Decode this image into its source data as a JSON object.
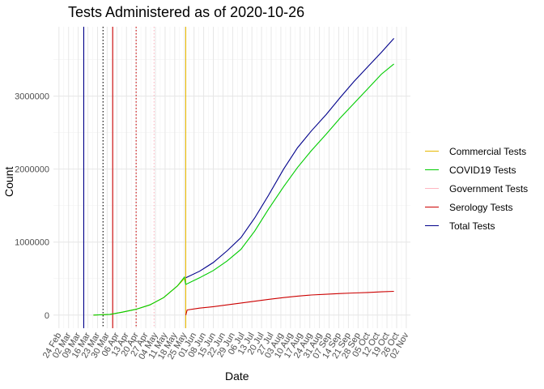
{
  "chart_data": {
    "type": "line",
    "title": "Tests Administered as of 2020-10-26",
    "xlabel": "Date",
    "ylabel": "Count",
    "x_range": [
      "2020-02-20",
      "2020-11-05"
    ],
    "ylim": [
      -180000,
      3950000
    ],
    "yticks": [
      0,
      1000000,
      2000000,
      3000000
    ],
    "ytick_labels": [
      "0",
      "1000000",
      "2000000",
      "3000000"
    ],
    "xticks": [
      "2020-02-24",
      "2020-03-02",
      "2020-03-09",
      "2020-03-16",
      "2020-03-23",
      "2020-03-30",
      "2020-04-06",
      "2020-04-13",
      "2020-04-20",
      "2020-04-27",
      "2020-05-04",
      "2020-05-11",
      "2020-05-18",
      "2020-05-25",
      "2020-06-01",
      "2020-06-08",
      "2020-06-15",
      "2020-06-22",
      "2020-06-29",
      "2020-07-06",
      "2020-07-13",
      "2020-07-20",
      "2020-07-27",
      "2020-08-03",
      "2020-08-10",
      "2020-08-17",
      "2020-08-24",
      "2020-08-31",
      "2020-09-07",
      "2020-09-14",
      "2020-09-21",
      "2020-09-28",
      "2020-10-05",
      "2020-10-12",
      "2020-10-19",
      "2020-10-26",
      "2020-11-02"
    ],
    "xtick_labels": [
      "24 Feb",
      "02 Mar",
      "09 Mar",
      "16 Mar",
      "23 Mar",
      "30 Mar",
      "06 Apr",
      "13 Apr",
      "20 Apr",
      "27 Apr",
      "04 May",
      "11 May",
      "18 May",
      "25 May",
      "01 Jun",
      "08 Jun",
      "15 Jun",
      "22 Jun",
      "29 Jun",
      "06 Jul",
      "13 Jul",
      "20 Jul",
      "27 Jul",
      "03 Aug",
      "10 Aug",
      "17 Aug",
      "24 Aug",
      "31 Aug",
      "07 Sep",
      "14 Sep",
      "21 Sep",
      "28 Sep",
      "05 Oct",
      "12 Oct",
      "19 Oct",
      "26 Oct",
      "02 Nov"
    ],
    "grid": true,
    "legend_position": "right",
    "series": [
      {
        "name": "Commercial Tests",
        "color": "#E6B800",
        "x": [
          "2020-03-20",
          "2020-04-01",
          "2020-04-10",
          "2020-04-20",
          "2020-04-30",
          "2020-05-10",
          "2020-05-20",
          "2020-05-25"
        ],
        "values": [
          0,
          10000,
          40000,
          80000,
          140000,
          240000,
          400000,
          500000
        ]
      },
      {
        "name": "COVID19 Tests",
        "color": "#00CC00",
        "x": [
          "2020-03-20",
          "2020-04-01",
          "2020-04-10",
          "2020-04-20",
          "2020-04-30",
          "2020-05-10",
          "2020-05-20",
          "2020-05-25",
          "2020-05-26",
          "2020-06-05",
          "2020-06-15",
          "2020-06-25",
          "2020-07-05",
          "2020-07-15",
          "2020-07-25",
          "2020-08-05",
          "2020-08-15",
          "2020-08-25",
          "2020-09-05",
          "2020-09-15",
          "2020-09-25",
          "2020-10-05",
          "2020-10-15",
          "2020-10-24"
        ],
        "values": [
          0,
          10000,
          40000,
          80000,
          140000,
          240000,
          400000,
          520000,
          420000,
          510000,
          610000,
          740000,
          900000,
          1150000,
          1450000,
          1760000,
          2020000,
          2250000,
          2480000,
          2700000,
          2900000,
          3100000,
          3300000,
          3440000
        ]
      },
      {
        "name": "Government Tests",
        "color": "#FFB6C1",
        "x": [],
        "values": []
      },
      {
        "name": "Serology Tests",
        "color": "#CC0000",
        "x": [
          "2020-05-26",
          "2020-05-27",
          "2020-06-05",
          "2020-06-15",
          "2020-06-25",
          "2020-07-05",
          "2020-07-15",
          "2020-07-25",
          "2020-08-05",
          "2020-08-15",
          "2020-08-25",
          "2020-09-05",
          "2020-09-15",
          "2020-09-25",
          "2020-10-05",
          "2020-10-15",
          "2020-10-24"
        ],
        "values": [
          0,
          70000,
          95000,
          115000,
          140000,
          165000,
          190000,
          215000,
          240000,
          260000,
          275000,
          285000,
          295000,
          303000,
          310000,
          318000,
          325000
        ]
      },
      {
        "name": "Total Tests",
        "color": "#00008B",
        "x": [
          "2020-05-26",
          "2020-06-05",
          "2020-06-15",
          "2020-06-25",
          "2020-07-05",
          "2020-07-15",
          "2020-07-25",
          "2020-08-05",
          "2020-08-15",
          "2020-08-25",
          "2020-09-05",
          "2020-09-15",
          "2020-09-25",
          "2020-10-05",
          "2020-10-15",
          "2020-10-24"
        ],
        "values": [
          510000,
          600000,
          720000,
          880000,
          1060000,
          1330000,
          1640000,
          2000000,
          2290000,
          2520000,
          2750000,
          2980000,
          3200000,
          3400000,
          3600000,
          3790000
        ]
      }
    ],
    "vlines": [
      {
        "x": "2020-03-13",
        "color": "#00008B",
        "style": "solid"
      },
      {
        "x": "2020-03-27",
        "color": "#000000",
        "style": "dotted"
      },
      {
        "x": "2020-04-03",
        "color": "#CC0000",
        "style": "solid"
      },
      {
        "x": "2020-04-20",
        "color": "#CC0000",
        "style": "dotted"
      },
      {
        "x": "2020-05-03",
        "color": "#FFB6C1",
        "style": "dotted"
      },
      {
        "x": "2020-05-26",
        "color": "#E6B800",
        "style": "solid"
      }
    ]
  }
}
